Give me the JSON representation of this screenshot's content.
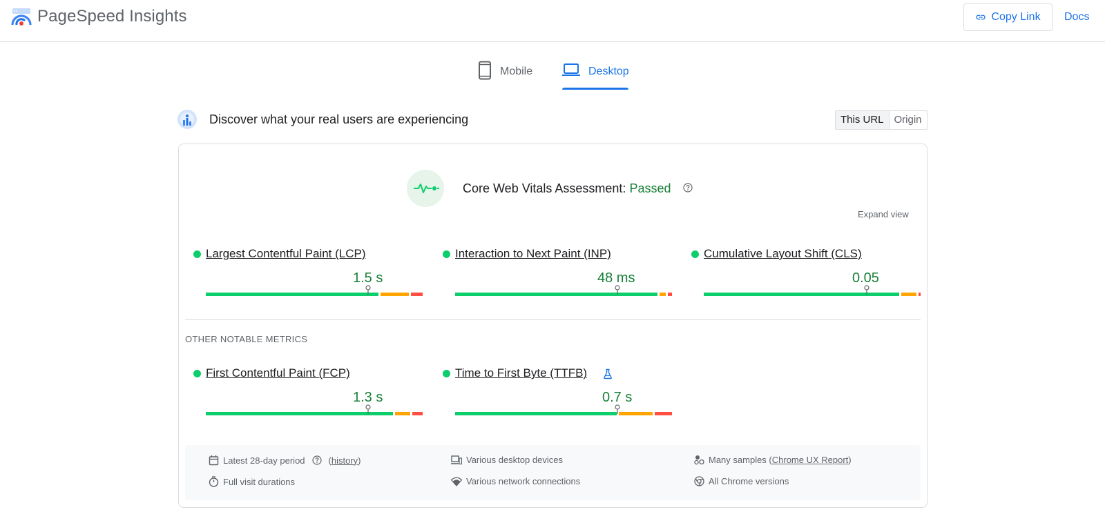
{
  "header": {
    "app_title": "PageSpeed Insights",
    "copy_link_label": "Copy Link",
    "docs_label": "Docs"
  },
  "tabs": [
    {
      "label": "Mobile",
      "icon": "phone-icon",
      "active": false
    },
    {
      "label": "Desktop",
      "icon": "laptop-icon",
      "active": true
    }
  ],
  "discover": {
    "title": "Discover what your real users are experiencing",
    "toggle": [
      "This URL",
      "Origin"
    ],
    "toggle_selected": "This URL"
  },
  "assessment": {
    "label": "Core Web Vitals Assessment:",
    "status": "Passed",
    "expand_label": "Expand view"
  },
  "core_metrics": [
    {
      "name": "Largest Contentful Paint (LCP)",
      "value": "1.5 s",
      "status": "good",
      "distribution": [
        0.73,
        0.12,
        0.05
      ]
    },
    {
      "name": "Interaction to Next Paint (INP)",
      "value": "48 ms",
      "status": "good",
      "distribution": [
        0.95,
        0.03,
        0.02
      ]
    },
    {
      "name": "Cumulative Layout Shift (CLS)",
      "value": "0.05",
      "status": "good",
      "distribution": [
        0.92,
        0.07,
        0.01
      ]
    }
  ],
  "other_metrics_label": "OTHER NOTABLE METRICS",
  "other_metrics": [
    {
      "name": "First Contentful Paint (FCP)",
      "value": "1.3 s",
      "status": "good",
      "experimental": false,
      "distribution": [
        0.88,
        0.07,
        0.05
      ]
    },
    {
      "name": "Time to First Byte (TTFB)",
      "value": "0.7 s",
      "status": "good",
      "experimental": true,
      "distribution": [
        0.76,
        0.16,
        0.08
      ]
    }
  ],
  "footer": {
    "period": "Latest 28-day period",
    "history_link": "history",
    "devices": "Various desktop devices",
    "samples_prefix": "Many samples (",
    "samples_link": "Chrome UX Report",
    "samples_suffix": ")",
    "durations": "Full visit durations",
    "network": "Various network connections",
    "chrome": "All Chrome versions"
  },
  "colors": {
    "accent": "#1a73e8",
    "good": "#0cce6b",
    "good_text": "#188038",
    "needs_improvement": "#ffa400",
    "poor": "#ff4e42"
  }
}
